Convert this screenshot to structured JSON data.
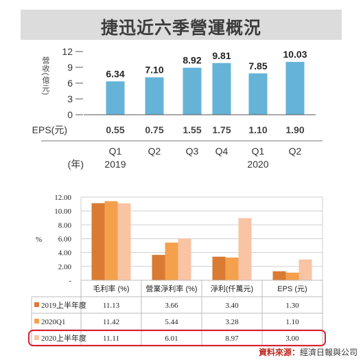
{
  "source": {
    "label": "資料來源：",
    "name": "經濟日報與公司"
  },
  "chart_data": [
    {
      "type": "bar",
      "title": "捷迅近六季營運概況",
      "ylabel": "營收(億元)",
      "ylim": [
        0,
        12
      ],
      "yticks": [
        "12",
        "9",
        "6",
        "3",
        "0"
      ],
      "xlabel": "(年)",
      "categories": [
        "Q1\n2019",
        "Q2",
        "Q3",
        "Q4",
        "Q1\n2020",
        "Q2"
      ],
      "quarters": [
        "Q1",
        "Q2",
        "Q3",
        "Q4",
        "Q1",
        "Q2"
      ],
      "years": [
        "2019",
        "",
        "",
        "",
        "2020",
        ""
      ],
      "values": [
        6.34,
        7.1,
        8.92,
        9.81,
        7.85,
        10.03
      ],
      "value_labels": [
        "6.34",
        "7.10",
        "8.92",
        "9.81",
        "7.85",
        "10.03"
      ],
      "eps_label": "EPS(元)",
      "eps": [
        "0.55",
        "0.75",
        "1.55",
        "1.75",
        "1.10",
        "1.90"
      ],
      "bar_color": "#66b3d8"
    },
    {
      "type": "bar",
      "ylabel": "%",
      "ylim": [
        0,
        12
      ],
      "yticks": [
        "12.00",
        "10.00",
        "8.00",
        "6.00",
        "4.00",
        "2.00",
        "-"
      ],
      "categories": [
        "毛利率 (%)",
        "營業淨利率 (%)",
        "淨利(仟萬元)",
        "EPS (元)"
      ],
      "series": [
        {
          "name": "2019上半年度",
          "color": "#d97b33",
          "values": [
            11.13,
            3.66,
            3.4,
            1.3
          ],
          "labels": [
            "11.13",
            "3.66",
            "3.40",
            "1.30"
          ]
        },
        {
          "name": "2020Q1",
          "color": "#f5a04c",
          "values": [
            11.42,
            5.44,
            3.28,
            1.1
          ],
          "labels": [
            "11.42",
            "5.44",
            "3.28",
            "1.10"
          ]
        },
        {
          "name": "2020上半年度",
          "color": "#f8c4a4",
          "values": [
            11.11,
            6.01,
            8.97,
            3.0
          ],
          "labels": [
            "11.11",
            "6.01",
            "8.97",
            "3.00"
          ]
        }
      ],
      "grid": true,
      "highlight_row": "2020上半年度",
      "highlight_color": "#e02030"
    }
  ]
}
